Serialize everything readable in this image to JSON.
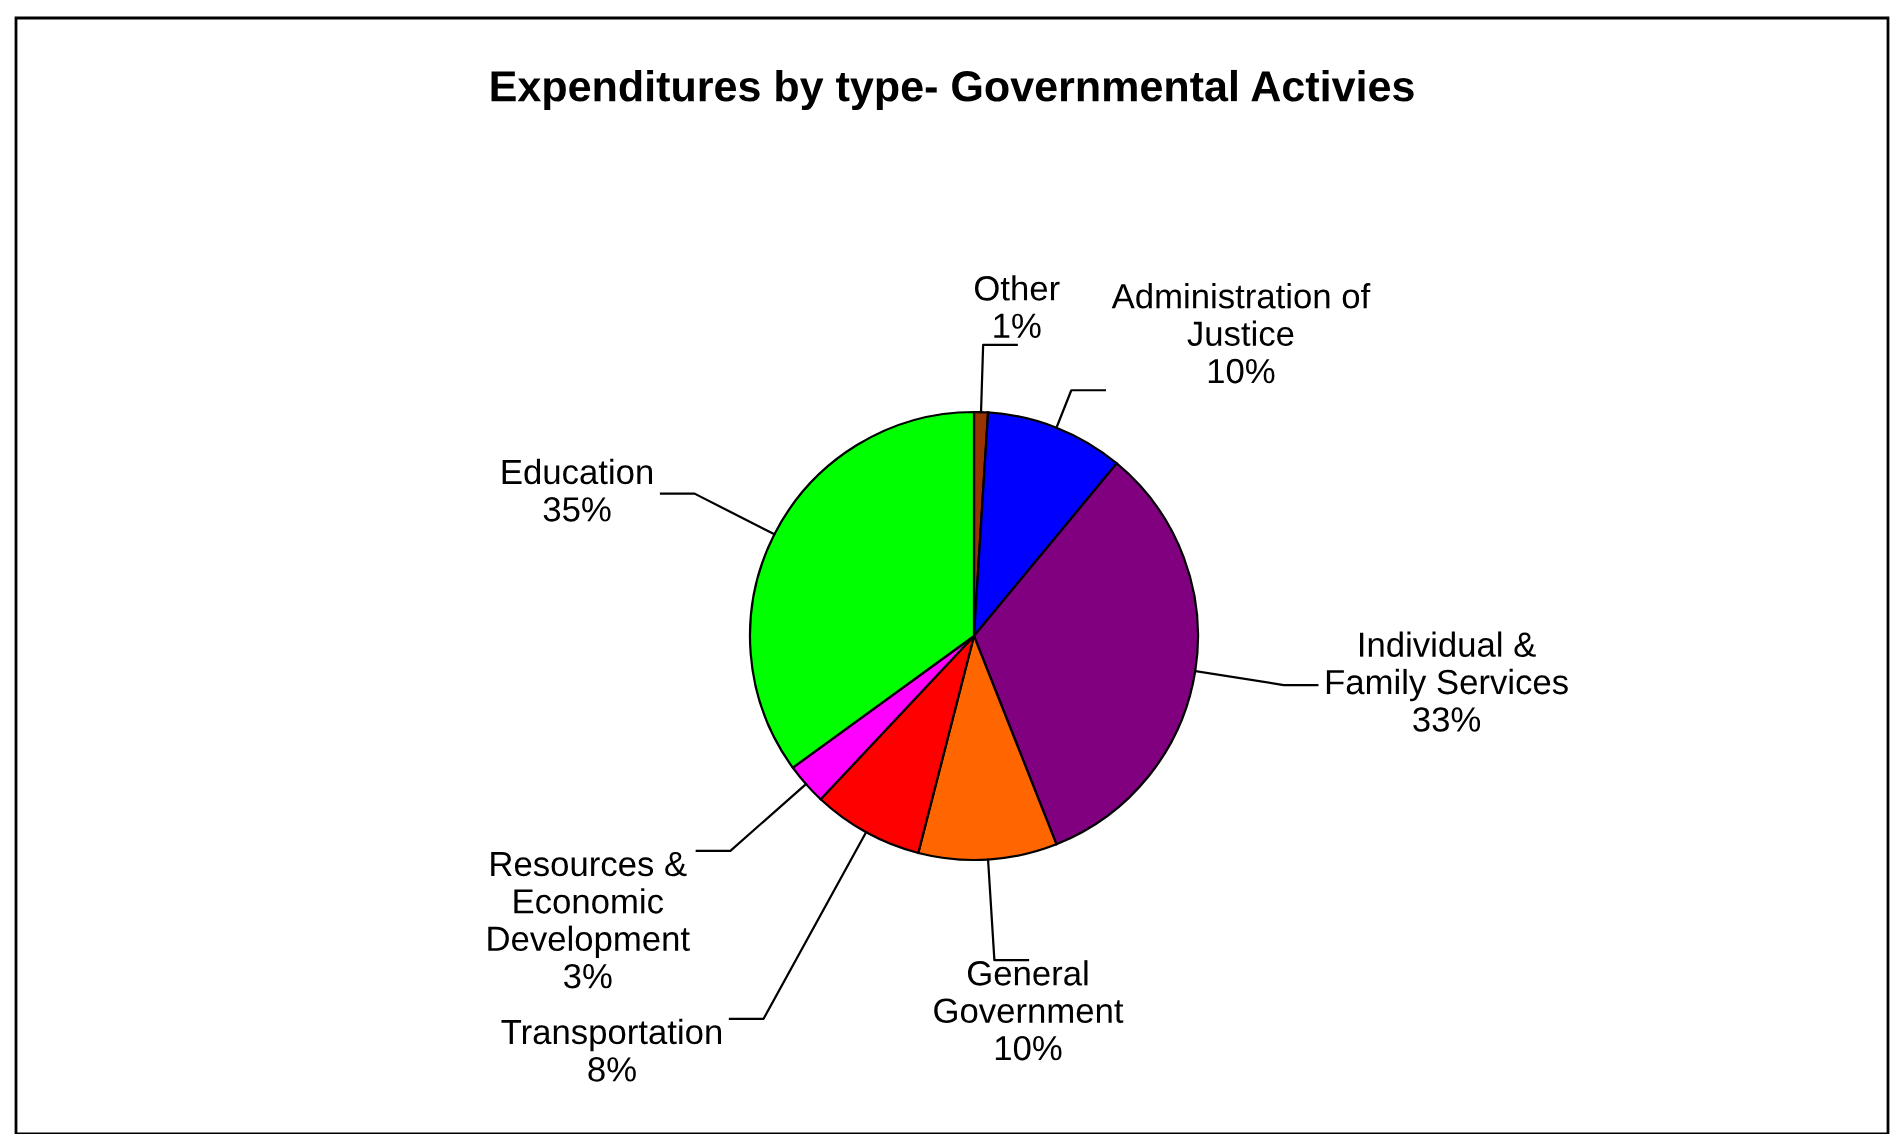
{
  "chart_data": {
    "type": "pie",
    "title": "Expenditures by type- Governmental Activies",
    "categories": [
      "Other",
      "Administration of\nJustice",
      "Individual &\nFamily Services",
      "General\nGovernment",
      "Transportation",
      "Resources &\nEconomic\nDevelopment",
      "Education"
    ],
    "values": [
      1,
      10,
      33,
      10,
      8,
      3,
      35
    ],
    "value_labels": [
      "1%",
      "10%",
      "33%",
      "10%",
      "8%",
      "3%",
      "35%"
    ],
    "colors": [
      "#993300",
      "#0000ff",
      "#800080",
      "#ff6600",
      "#ff0000",
      "#ff00ff",
      "#00ff00"
    ],
    "legend": false
  }
}
